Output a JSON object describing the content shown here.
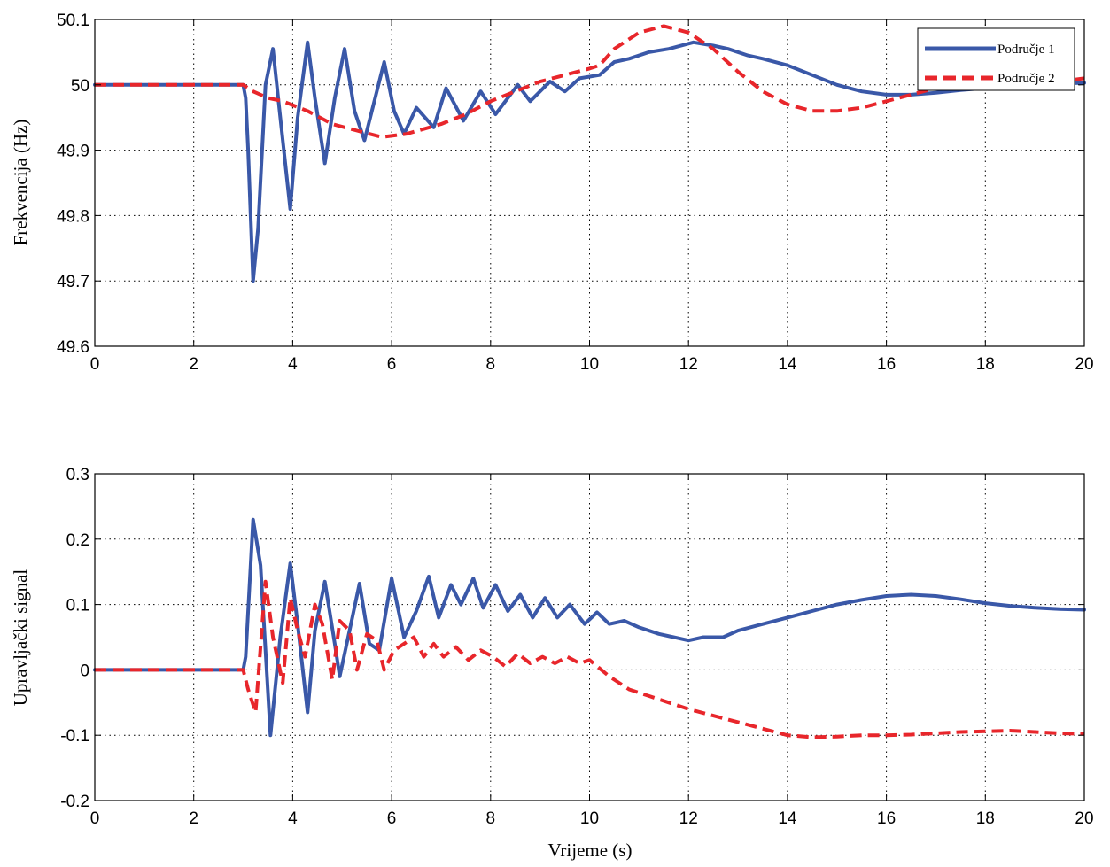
{
  "colors": {
    "series1": "#3a58a8",
    "series2": "#e8262b"
  },
  "chart_data": [
    {
      "type": "line",
      "title": "",
      "xlabel": "",
      "ylabel": "Frekvencija (Hz)",
      "xlim": [
        0,
        20
      ],
      "ylim": [
        49.6,
        50.1
      ],
      "xticks": [
        "0",
        "2",
        "4",
        "6",
        "8",
        "10",
        "12",
        "14",
        "16",
        "18",
        "20"
      ],
      "yticks": [
        "49.6",
        "49.7",
        "49.8",
        "49.9",
        "50",
        "50.1"
      ],
      "grid": true,
      "legend_position": "top-right",
      "series": [
        {
          "name": "Područje 1",
          "style": "solid",
          "x": [
            0,
            3,
            3.05,
            3.1,
            3.2,
            3.3,
            3.45,
            3.6,
            3.75,
            3.95,
            4.1,
            4.3,
            4.45,
            4.65,
            4.85,
            5.05,
            5.25,
            5.45,
            5.6,
            5.85,
            6.05,
            6.25,
            6.5,
            6.85,
            7.1,
            7.45,
            7.8,
            8.1,
            8.55,
            8.8,
            9.2,
            9.5,
            9.8,
            10.2,
            10.5,
            10.8,
            11.2,
            11.6,
            12.1,
            12.5,
            12.8,
            13.2,
            13.5,
            14,
            14.5,
            15,
            15.5,
            16,
            16.5,
            17,
            17.5,
            18,
            18.5,
            19,
            19.5,
            20
          ],
          "y": [
            50,
            50,
            49.98,
            49.9,
            49.7,
            49.78,
            50.0,
            50.055,
            49.95,
            49.81,
            49.95,
            50.065,
            49.98,
            49.88,
            49.98,
            50.055,
            49.96,
            49.915,
            49.96,
            50.035,
            49.96,
            49.925,
            49.965,
            49.935,
            49.995,
            49.945,
            49.99,
            49.955,
            50.0,
            49.975,
            50.005,
            49.99,
            50.01,
            50.015,
            50.035,
            50.04,
            50.05,
            50.055,
            50.065,
            50.06,
            50.055,
            50.045,
            50.04,
            50.03,
            50.015,
            50.0,
            49.99,
            49.985,
            49.985,
            49.988,
            49.992,
            49.995,
            49.998,
            50.0,
            50.002,
            50.003
          ]
        },
        {
          "name": "Područje 2",
          "style": "dashed",
          "x": [
            0,
            3,
            3.2,
            3.5,
            3.8,
            4.3,
            4.8,
            5.3,
            5.8,
            6.3,
            7.0,
            7.5,
            8.0,
            8.5,
            9.0,
            9.5,
            10.0,
            10.2,
            10.5,
            11.0,
            11.5,
            12.0,
            12.5,
            13.0,
            13.5,
            14.0,
            14.5,
            15.0,
            15.5,
            16.0,
            16.5,
            17.0,
            17.5,
            18.0,
            18.5,
            19.0,
            19.5,
            20
          ],
          "y": [
            50,
            50,
            49.99,
            49.98,
            49.975,
            49.96,
            49.94,
            49.93,
            49.92,
            49.925,
            49.94,
            49.955,
            49.975,
            49.99,
            50.005,
            50.015,
            50.025,
            50.03,
            50.055,
            50.08,
            50.09,
            50.08,
            50.055,
            50.02,
            49.99,
            49.97,
            49.96,
            49.96,
            49.965,
            49.975,
            49.985,
            49.995,
            50.0,
            50.002,
            50.003,
            50.003,
            50.005,
            50.01
          ]
        }
      ]
    },
    {
      "type": "line",
      "title": "",
      "xlabel": "Vrijeme (s)",
      "ylabel": "Upravljački signal",
      "xlim": [
        0,
        20
      ],
      "ylim": [
        -0.2,
        0.3
      ],
      "xticks": [
        "0",
        "2",
        "4",
        "6",
        "8",
        "10",
        "12",
        "14",
        "16",
        "18",
        "20"
      ],
      "yticks": [
        "-0.2",
        "-0.1",
        "0",
        "0.1",
        "0.2",
        "0.3"
      ],
      "grid": true,
      "series": [
        {
          "name": "Područje 1",
          "style": "solid",
          "x": [
            0,
            3,
            3.05,
            3.2,
            3.35,
            3.55,
            3.75,
            3.95,
            4.1,
            4.3,
            4.45,
            4.65,
            4.85,
            4.95,
            5.15,
            5.35,
            5.55,
            5.75,
            6.0,
            6.25,
            6.5,
            6.75,
            6.95,
            7.2,
            7.4,
            7.65,
            7.85,
            8.1,
            8.35,
            8.6,
            8.85,
            9.1,
            9.35,
            9.6,
            9.9,
            10.15,
            10.4,
            10.7,
            11.0,
            11.4,
            11.7,
            12.0,
            12.3,
            12.7,
            13.0,
            13.5,
            14.0,
            14.5,
            15.0,
            15.5,
            16.0,
            16.5,
            17.0,
            17.5,
            18.0,
            18.5,
            19.0,
            19.5,
            20
          ],
          "y": [
            0,
            0,
            0.02,
            0.23,
            0.16,
            -0.1,
            0.05,
            0.163,
            0.07,
            -0.065,
            0.06,
            0.135,
            0.04,
            -0.01,
            0.06,
            0.132,
            0.04,
            0.03,
            0.14,
            0.05,
            0.09,
            0.143,
            0.08,
            0.13,
            0.1,
            0.14,
            0.095,
            0.13,
            0.09,
            0.115,
            0.08,
            0.11,
            0.08,
            0.1,
            0.07,
            0.088,
            0.07,
            0.075,
            0.065,
            0.055,
            0.05,
            0.045,
            0.05,
            0.05,
            0.06,
            0.07,
            0.08,
            0.09,
            0.1,
            0.107,
            0.113,
            0.115,
            0.113,
            0.108,
            0.102,
            0.098,
            0.095,
            0.093,
            0.092
          ]
        },
        {
          "name": "Područje 2",
          "style": "dashed",
          "x": [
            0,
            3,
            3.1,
            3.25,
            3.45,
            3.6,
            3.8,
            3.95,
            4.1,
            4.25,
            4.45,
            4.6,
            4.8,
            4.95,
            5.15,
            5.3,
            5.5,
            5.7,
            5.85,
            6.05,
            6.25,
            6.45,
            6.65,
            6.85,
            7.05,
            7.3,
            7.55,
            7.8,
            8.05,
            8.3,
            8.55,
            8.8,
            9.05,
            9.3,
            9.55,
            9.8,
            10.0,
            10.4,
            10.8,
            11.2,
            11.6,
            12.0,
            12.5,
            13.0,
            13.5,
            14.0,
            14.5,
            15.0,
            15.5,
            16.0,
            16.5,
            17.0,
            17.5,
            18.0,
            18.5,
            19.0,
            19.5,
            20
          ],
          "y": [
            0,
            0,
            -0.03,
            -0.065,
            0.135,
            0.05,
            -0.02,
            0.11,
            0.06,
            0.02,
            0.1,
            0.07,
            -0.015,
            0.075,
            0.06,
            0.0,
            0.055,
            0.045,
            0.0,
            0.03,
            0.04,
            0.05,
            0.02,
            0.04,
            0.02,
            0.035,
            0.015,
            0.03,
            0.02,
            0.005,
            0.025,
            0.01,
            0.02,
            0.01,
            0.02,
            0.01,
            0.015,
            -0.01,
            -0.03,
            -0.04,
            -0.05,
            -0.06,
            -0.07,
            -0.08,
            -0.09,
            -0.1,
            -0.103,
            -0.102,
            -0.1,
            -0.1,
            -0.099,
            -0.097,
            -0.095,
            -0.094,
            -0.093,
            -0.095,
            -0.097,
            -0.098
          ]
        }
      ]
    }
  ]
}
